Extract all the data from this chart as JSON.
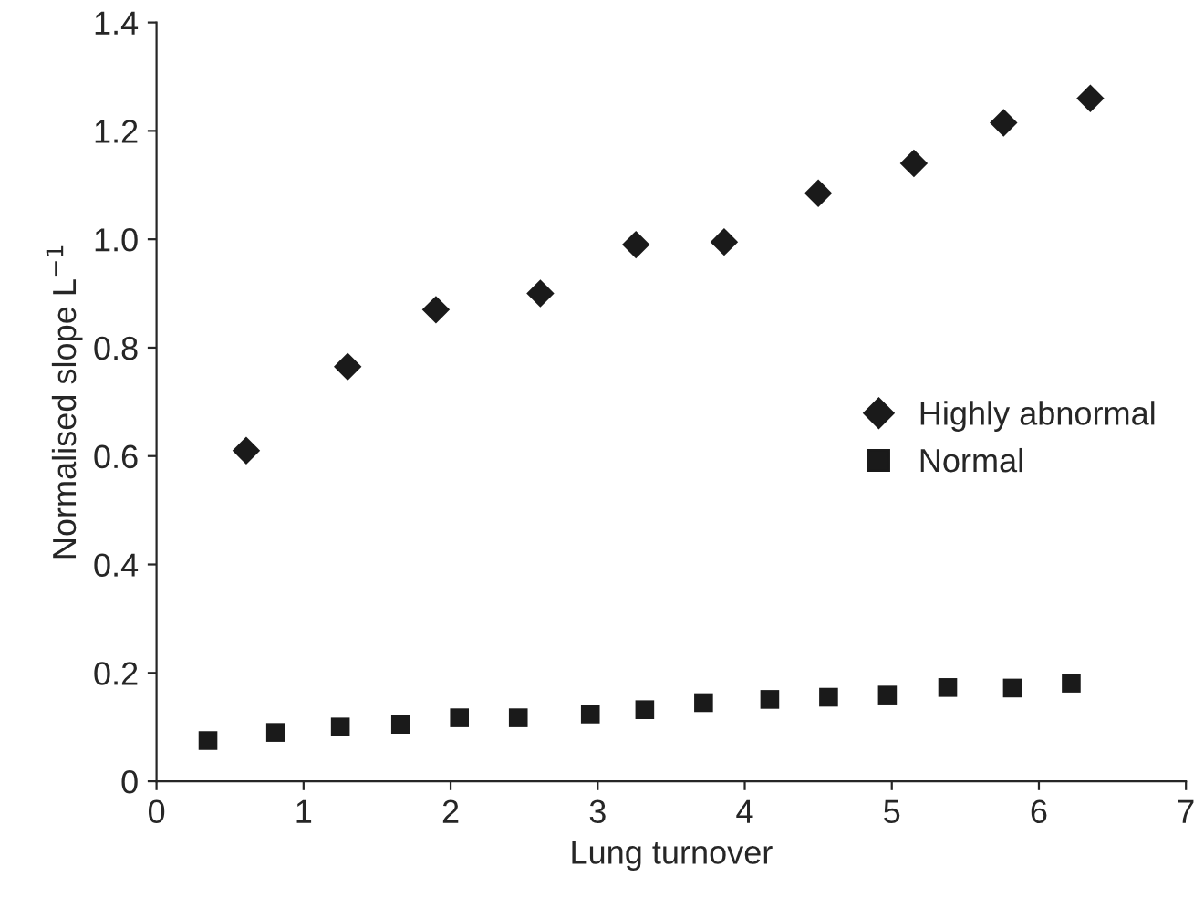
{
  "chart_data": {
    "type": "scatter",
    "xlabel": "Lung turnover",
    "ylabel": "Normalised slope L$^{−1}$",
    "xlim": [
      0,
      7
    ],
    "xticks": [
      0,
      1,
      2,
      3,
      4,
      5,
      6,
      7
    ],
    "ylim": [
      0,
      1.4
    ],
    "yticks": [
      0,
      0.2,
      0.4,
      0.6,
      0.8,
      {
        "value": 1,
        "label": "1.0"
      },
      1.2,
      1.4
    ],
    "grid": false,
    "legend": "right",
    "series": [
      {
        "name": "Highly abnormal",
        "color": "#1a1a1a",
        "marker": "diamond",
        "x": [
          0.61,
          1.3,
          1.9,
          2.61,
          3.26,
          3.86,
          4.5,
          5.15,
          5.76,
          6.35
        ],
        "values": [
          0.61,
          0.765,
          0.87,
          0.9,
          0.99,
          0.995,
          1.085,
          1.14,
          1.215,
          1.26
        ]
      },
      {
        "name": "Normal",
        "color": "#1a1a1a",
        "marker": "square",
        "x": [
          0.35,
          0.81,
          1.25,
          1.66,
          2.06,
          2.46,
          2.95,
          3.32,
          3.72,
          4.17,
          4.57,
          4.97,
          5.38,
          5.82,
          6.22
        ],
        "values": [
          0.075,
          0.09,
          0.1,
          0.105,
          0.117,
          0.117,
          0.124,
          0.132,
          0.145,
          0.151,
          0.155,
          0.159,
          0.173,
          0.172,
          0.181
        ]
      }
    ]
  }
}
